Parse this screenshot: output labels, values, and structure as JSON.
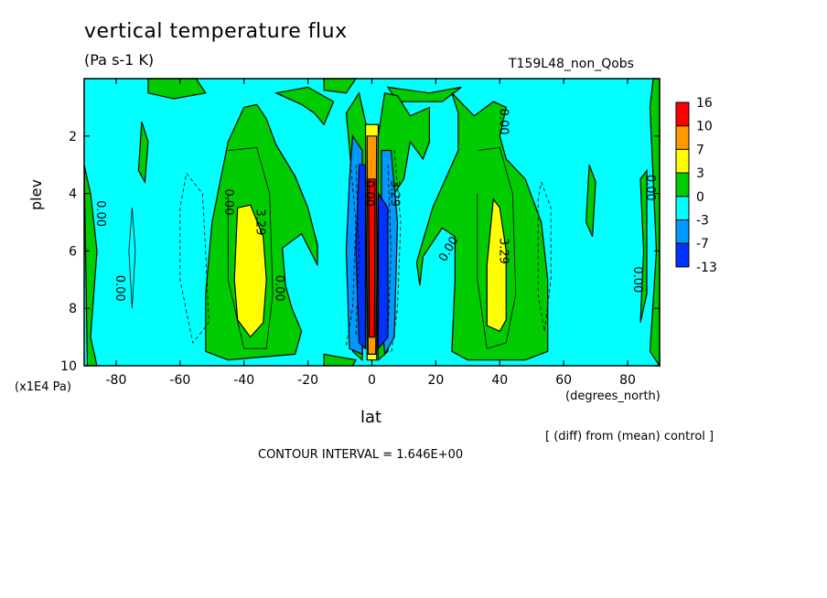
{
  "chart_data": {
    "type": "contour",
    "title": "vertical temperature flux",
    "units": "(Pa s-1 K)",
    "run_label": "T159L48_non_Qobs",
    "xlabel": "lat",
    "x_units": "(degrees_north)",
    "ylabel": "plev",
    "y_units": "(x1E4 Pa)",
    "xlim": [
      -90,
      90
    ],
    "ylim": [
      10,
      0
    ],
    "x_ticks": [
      -80,
      -60,
      -40,
      -20,
      0,
      20,
      40,
      60,
      80
    ],
    "y_ticks": [
      2,
      4,
      6,
      8,
      10
    ],
    "legend_levels": [
      "16",
      "10",
      "7",
      "3",
      "0",
      "-3",
      "-7",
      "-13"
    ],
    "legend_colors": [
      "#ff0000",
      "#ff9900",
      "#ffff00",
      "#00cc00",
      "#00ffff",
      "#0099ff",
      "#0033ff"
    ],
    "contour_labels": [
      "0.00",
      "3.29"
    ],
    "contour_interval": "CONTOUR INTERVAL = 1.646E+00",
    "note": "[ (diff) from (mean) control ]"
  },
  "colors": {
    "neutral": "#00ffff",
    "pos1": "#00cc00",
    "pos2": "#ffff00",
    "pos3": "#ff9900",
    "pos4": "#ff0000",
    "neg1": "#0099ff",
    "neg2": "#0033ff"
  }
}
